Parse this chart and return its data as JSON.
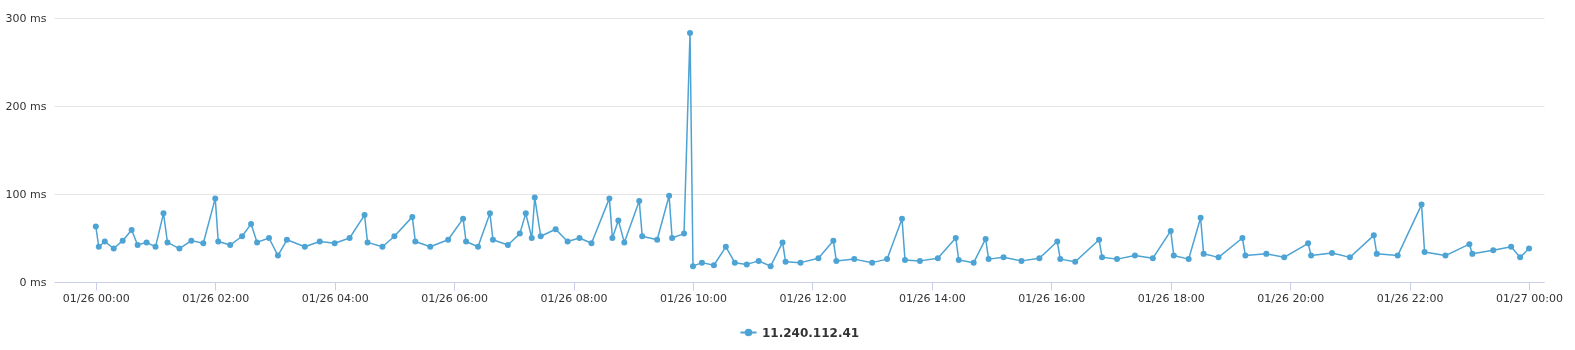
{
  "chart_data": {
    "type": "line",
    "marker": "circle",
    "line_style": "solid",
    "grid": "y",
    "legend": "bottom",
    "xlim": [
      "--01-25T23:18",
      "--01-27T00:15"
    ],
    "ylim": [
      0,
      300
    ],
    "xticks": [
      {
        "value": "--01-26T00:00",
        "label": "01/26 00:00"
      },
      {
        "value": "--01-26T02:00",
        "label": "01/26 02:00"
      },
      {
        "value": "--01-26T04:00",
        "label": "01/26 04:00"
      },
      {
        "value": "--01-26T06:00",
        "label": "01/26 06:00"
      },
      {
        "value": "--01-26T08:00",
        "label": "01/26 08:00"
      },
      {
        "value": "--01-26T10:00",
        "label": "01/26 10:00"
      },
      {
        "value": "--01-26T12:00",
        "label": "01/26 12:00"
      },
      {
        "value": "--01-26T14:00",
        "label": "01/26 14:00"
      },
      {
        "value": "--01-26T16:00",
        "label": "01/26 16:00"
      },
      {
        "value": "--01-26T18:00",
        "label": "01/26 18:00"
      },
      {
        "value": "--01-26T20:00",
        "label": "01/26 20:00"
      },
      {
        "value": "--01-26T22:00",
        "label": "01/26 22:00"
      },
      {
        "value": "--01-27T00:00",
        "label": "01/27 00:00"
      }
    ],
    "yticks": [
      {
        "value": 0,
        "label": "0 ms"
      },
      {
        "value": 100,
        "label": "100 ms"
      },
      {
        "value": 200,
        "label": "200 ms"
      },
      {
        "value": 300,
        "label": "300 ms"
      }
    ],
    "x": [
      "--01-26T00:00",
      "--01-26T00:03",
      "--01-26T00:09",
      "--01-26T00:18",
      "--01-26T00:27",
      "--01-26T00:36",
      "--01-26T00:42",
      "--01-26T00:51",
      "--01-26T01:00",
      "--01-26T01:08",
      "--01-26T01:12",
      "--01-26T01:24",
      "--01-26T01:36",
      "--01-26T01:48",
      "--01-26T02:00",
      "--01-26T02:03",
      "--01-26T02:15",
      "--01-26T02:27",
      "--01-26T02:36",
      "--01-26T02:42",
      "--01-26T02:54",
      "--01-26T03:03",
      "--01-26T03:12",
      "--01-26T03:30",
      "--01-26T03:45",
      "--01-26T04:00",
      "--01-26T04:15",
      "--01-26T04:30",
      "--01-26T04:33",
      "--01-26T04:48",
      "--01-26T05:00",
      "--01-26T05:18",
      "--01-26T05:21",
      "--01-26T05:36",
      "--01-26T05:54",
      "--01-26T06:09",
      "--01-26T06:12",
      "--01-26T06:24",
      "--01-26T06:36",
      "--01-26T06:39",
      "--01-26T06:54",
      "--01-26T07:06",
      "--01-26T07:12",
      "--01-26T07:18",
      "--01-26T07:21",
      "--01-26T07:27",
      "--01-26T07:42",
      "--01-26T07:54",
      "--01-26T08:06",
      "--01-26T08:18",
      "--01-26T08:36",
      "--01-26T08:39",
      "--01-26T08:45",
      "--01-26T08:51",
      "--01-26T09:06",
      "--01-26T09:09",
      "--01-26T09:24",
      "--01-26T09:36",
      "--01-26T09:39",
      "--01-26T09:51",
      "--01-26T09:57",
      "--01-26T10:00",
      "--01-26T10:09",
      "--01-26T10:21",
      "--01-26T10:33",
      "--01-26T10:42",
      "--01-26T10:54",
      "--01-26T11:06",
      "--01-26T11:18",
      "--01-26T11:30",
      "--01-26T11:33",
      "--01-26T11:48",
      "--01-26T12:06",
      "--01-26T12:21",
      "--01-26T12:24",
      "--01-26T12:42",
      "--01-26T13:00",
      "--01-26T13:15",
      "--01-26T13:30",
      "--01-26T13:33",
      "--01-26T13:48",
      "--01-26T14:06",
      "--01-26T14:24",
      "--01-26T14:27",
      "--01-26T14:42",
      "--01-26T14:54",
      "--01-26T14:57",
      "--01-26T15:12",
      "--01-26T15:30",
      "--01-26T15:48",
      "--01-26T16:06",
      "--01-26T16:09",
      "--01-26T16:24",
      "--01-26T16:48",
      "--01-26T16:51",
      "--01-26T17:06",
      "--01-26T17:24",
      "--01-26T17:42",
      "--01-26T18:00",
      "--01-26T18:03",
      "--01-26T18:18",
      "--01-26T18:30",
      "--01-26T18:33",
      "--01-26T18:48",
      "--01-26T19:12",
      "--01-26T19:15",
      "--01-26T19:36",
      "--01-26T19:54",
      "--01-26T20:18",
      "--01-26T20:21",
      "--01-26T20:42",
      "--01-26T21:00",
      "--01-26T21:24",
      "--01-26T21:27",
      "--01-26T21:48",
      "--01-26T22:12",
      "--01-26T22:15",
      "--01-26T22:36",
      "--01-26T23:00",
      "--01-26T23:03",
      "--01-26T23:24",
      "--01-26T23:42",
      "--01-26T23:51",
      "--01-27T00:00"
    ],
    "series": [
      {
        "name": "11.240.112.41",
        "color": "#4da3d4",
        "values": [
          63,
          40,
          46,
          38,
          47,
          59,
          42,
          45,
          40,
          78,
          45,
          38,
          47,
          44,
          95,
          46,
          42,
          52,
          66,
          45,
          50,
          30,
          48,
          40,
          46,
          44,
          50,
          76,
          45,
          40,
          52,
          74,
          46,
          40,
          48,
          72,
          46,
          40,
          78,
          48,
          42,
          55,
          78,
          50,
          96,
          52,
          60,
          46,
          50,
          44,
          95,
          50,
          70,
          45,
          92,
          52,
          48,
          98,
          50,
          55,
          283,
          18,
          22,
          19,
          40,
          22,
          20,
          24,
          18,
          45,
          23,
          22,
          27,
          47,
          24,
          26,
          22,
          26,
          72,
          25,
          24,
          27,
          50,
          25,
          22,
          49,
          26,
          28,
          24,
          27,
          46,
          26,
          23,
          48,
          28,
          26,
          30,
          27,
          58,
          30,
          26,
          73,
          32,
          28,
          50,
          30,
          32,
          28,
          44,
          30,
          33,
          28,
          53,
          32,
          30,
          88,
          34,
          30,
          43,
          32,
          36,
          40,
          28,
          38
        ]
      }
    ]
  }
}
